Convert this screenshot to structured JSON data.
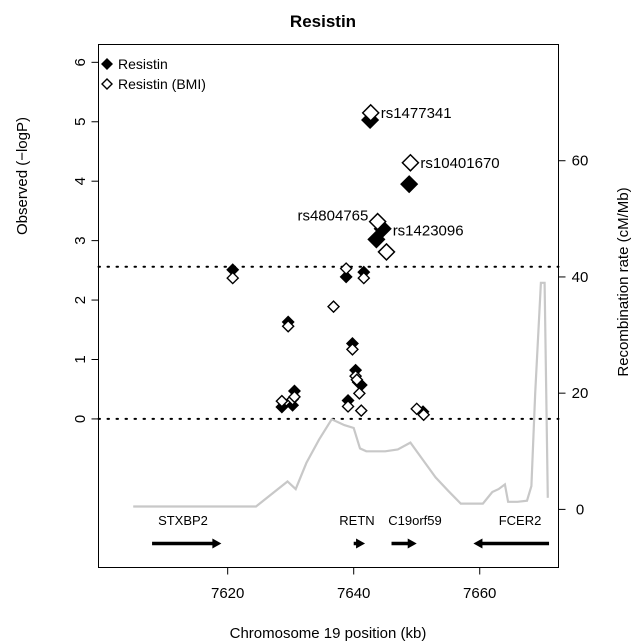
{
  "chart_data": {
    "type": "scatter",
    "title": "Resistin",
    "xlabel": "Chromosome 19 position (kb)",
    "ylabel": "Observed (−logP)",
    "ylabel_right": "Recombination rate (cM/Mb)",
    "xlim": [
      7599.5,
      7672.5
    ],
    "ylim": [
      -2.5,
      6.3
    ],
    "ylim_right": [
      -10,
      80
    ],
    "x_ticks": [
      "7620",
      "7640",
      "7660"
    ],
    "x_tick_values": [
      7620,
      7640,
      7660
    ],
    "y_ticks": [
      "0",
      "1",
      "2",
      "3",
      "4",
      "5",
      "6"
    ],
    "y_tick_values": [
      0,
      1,
      2,
      3,
      4,
      5,
      6
    ],
    "y_right_ticks": [
      "0",
      "20",
      "40",
      "60"
    ],
    "y_right_tick_values": [
      0,
      20,
      40,
      60
    ],
    "threshold_lines": [
      0,
      2.56
    ],
    "legend": {
      "placement": "top-left",
      "entries": [
        {
          "label": "Resistin",
          "marker": "filled-diamond"
        },
        {
          "label": "Resistin (BMI)",
          "marker": "open-diamond"
        }
      ]
    },
    "series": [
      {
        "name": "Resistin",
        "marker": "filled-diamond",
        "points": [
          {
            "x": 7620.8,
            "y": 2.51
          },
          {
            "x": 7628.6,
            "y": 0.2
          },
          {
            "x": 7629.6,
            "y": 1.63
          },
          {
            "x": 7630.3,
            "y": 0.23
          },
          {
            "x": 7630.6,
            "y": 0.47
          },
          {
            "x": 7638.8,
            "y": 2.39
          },
          {
            "x": 7639.1,
            "y": 0.31
          },
          {
            "x": 7639.8,
            "y": 1.27
          },
          {
            "x": 7640.3,
            "y": 0.82
          },
          {
            "x": 7640.7,
            "y": 0.62
          },
          {
            "x": 7641.2,
            "y": 0.57
          },
          {
            "x": 7641.6,
            "y": 2.47
          },
          {
            "x": 7642.6,
            "y": 5.03,
            "big": true
          },
          {
            "x": 7643.6,
            "y": 3.02,
            "big": true
          },
          {
            "x": 7644.6,
            "y": 3.2,
            "big": true
          },
          {
            "x": 7648.8,
            "y": 3.95,
            "big": true
          },
          {
            "x": 7651.0,
            "y": 0.12
          }
        ]
      },
      {
        "name": "Resistin (BMI)",
        "marker": "open-diamond",
        "points": [
          {
            "x": 7620.8,
            "y": 2.37
          },
          {
            "x": 7628.6,
            "y": 0.3
          },
          {
            "x": 7629.6,
            "y": 1.56
          },
          {
            "x": 7630.3,
            "y": 0.33
          },
          {
            "x": 7630.6,
            "y": 0.37
          },
          {
            "x": 7636.8,
            "y": 1.89
          },
          {
            "x": 7638.8,
            "y": 2.53
          },
          {
            "x": 7639.1,
            "y": 0.21
          },
          {
            "x": 7639.8,
            "y": 1.17
          },
          {
            "x": 7640.3,
            "y": 0.72
          },
          {
            "x": 7640.5,
            "y": 0.66
          },
          {
            "x": 7640.9,
            "y": 0.43
          },
          {
            "x": 7641.2,
            "y": 0.14
          },
          {
            "x": 7641.6,
            "y": 2.37
          },
          {
            "x": 7642.7,
            "y": 5.15,
            "big": true
          },
          {
            "x": 7643.8,
            "y": 3.32,
            "big": true
          },
          {
            "x": 7645.2,
            "y": 2.81,
            "big": true
          },
          {
            "x": 7649.0,
            "y": 4.31,
            "big": true
          },
          {
            "x": 7650.0,
            "y": 0.17
          },
          {
            "x": 7651.1,
            "y": 0.07
          }
        ]
      }
    ],
    "recombination_rate": {
      "x": [
        7605,
        7624.5,
        7629.5,
        7630.8,
        7632.5,
        7634.5,
        7636.5,
        7638.5,
        7640,
        7641,
        7642,
        7643.5,
        7645,
        7647,
        7649,
        7651,
        7653,
        7655,
        7657,
        7659,
        7660.5,
        7662,
        7663,
        7664,
        7664.5,
        7666,
        7667.5,
        7668.2,
        7668.8,
        7669.7,
        7670.3,
        7670.8
      ],
      "y": [
        0.5,
        0.5,
        4.8,
        3.5,
        8,
        12,
        15.5,
        14.5,
        14,
        10.5,
        10,
        10,
        10,
        10.3,
        11.5,
        8.5,
        5.5,
        3.2,
        1,
        1,
        1,
        3,
        3.5,
        4.3,
        1.3,
        1.3,
        1.5,
        4,
        20,
        39,
        39,
        2
      ]
    },
    "snp_labels": [
      {
        "text": "rs1477341",
        "x": 7642.7,
        "y": 5.15
      },
      {
        "text": "rs10401670",
        "x": 7649.0,
        "y": 4.31
      },
      {
        "text": "rs4804765",
        "x": 7643.6,
        "y": 3.32
      },
      {
        "text": "rs1423096",
        "x": 7644.6,
        "y": 3.2
      }
    ],
    "genes": [
      {
        "name": "STXBP2",
        "start": 7608,
        "end": 7619,
        "strand": "+"
      },
      {
        "name": "RETN",
        "start": 7640,
        "end": 7641.8,
        "strand": "+"
      },
      {
        "name": "C19orf59",
        "start": 7646,
        "end": 7650,
        "strand": "+"
      },
      {
        "name": "FCER2",
        "start": 7659,
        "end": 7671,
        "strand": "-"
      }
    ]
  }
}
